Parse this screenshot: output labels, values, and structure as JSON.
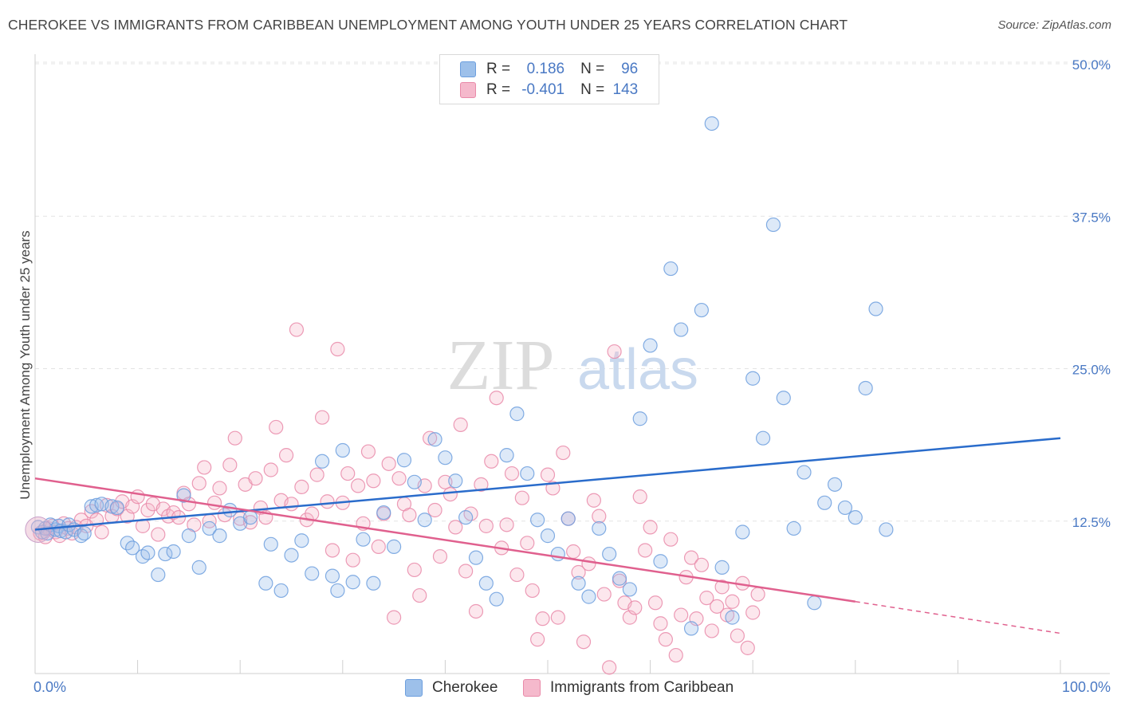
{
  "header": {
    "title": "CHEROKEE VS IMMIGRANTS FROM CARIBBEAN UNEMPLOYMENT AMONG YOUTH UNDER 25 YEARS CORRELATION CHART",
    "source": "Source: ZipAtlas.com"
  },
  "watermark": {
    "zip": "ZIP",
    "atlas": "atlas"
  },
  "legend": {
    "rows": [
      {
        "r_label": "R =",
        "r_value": "0.186",
        "n_label": "N =",
        "n_value": "96",
        "color": "#9dc0ea",
        "border": "#6d9fde"
      },
      {
        "r_label": "R =",
        "r_value": "-0.401",
        "n_label": "N =",
        "n_value": "143",
        "color": "#f5b9cc",
        "border": "#e98aa9"
      }
    ]
  },
  "bottom_legend": {
    "series1": "Cherokee",
    "series2": "Immigrants from Caribbean"
  },
  "x_axis": {
    "min_label": "0.0%",
    "max_label": "100.0%"
  },
  "colors": {
    "cherokee": "#6d9fde",
    "caribbean": "#e98aa9",
    "cherokee_line": "#2a6ccb",
    "caribbean_line": "#e0608e",
    "tick_label": "#4a79c4"
  },
  "chart_data": {
    "type": "scatter",
    "title": "CHEROKEE VS IMMIGRANTS FROM CARIBBEAN UNEMPLOYMENT AMONG YOUTH UNDER 25 YEARS CORRELATION CHART",
    "xlabel": "",
    "ylabel": "Unemployment Among Youth under 25 years",
    "xlim": [
      0,
      100
    ],
    "ylim": [
      0,
      50
    ],
    "y_ticks": [
      {
        "value": 12.5,
        "label": "12.5%"
      },
      {
        "value": 25.0,
        "label": "25.0%"
      },
      {
        "value": 37.5,
        "label": "37.5%"
      },
      {
        "value": 50.0,
        "label": "50.0%"
      }
    ],
    "grid": true,
    "legend_position": "top-center",
    "series": [
      {
        "name": "Cherokee",
        "R": 0.186,
        "N": 96,
        "trend": {
          "x": [
            0,
            100
          ],
          "y": [
            11.8,
            19.3
          ]
        },
        "points": [
          [
            0.3,
            12.0
          ],
          [
            0.7,
            11.6
          ],
          [
            1.0,
            11.9
          ],
          [
            1.2,
            11.5
          ],
          [
            1.5,
            12.2
          ],
          [
            2.0,
            11.8
          ],
          [
            2.3,
            12.1
          ],
          [
            2.5,
            11.7
          ],
          [
            3.0,
            11.6
          ],
          [
            3.3,
            12.2
          ],
          [
            3.8,
            11.8
          ],
          [
            4.5,
            11.3
          ],
          [
            4.8,
            11.5
          ],
          [
            5.5,
            13.7
          ],
          [
            6.0,
            13.8
          ],
          [
            6.5,
            13.9
          ],
          [
            7.5,
            13.7
          ],
          [
            8.0,
            13.6
          ],
          [
            9.0,
            10.7
          ],
          [
            9.5,
            10.3
          ],
          [
            10.5,
            9.6
          ],
          [
            11.0,
            9.9
          ],
          [
            12.0,
            8.1
          ],
          [
            12.7,
            9.8
          ],
          [
            13.5,
            10.0
          ],
          [
            14.5,
            14.6
          ],
          [
            15.0,
            11.3
          ],
          [
            16.0,
            8.7
          ],
          [
            17.0,
            11.9
          ],
          [
            18.0,
            11.3
          ],
          [
            19.0,
            13.4
          ],
          [
            20.0,
            12.3
          ],
          [
            21.0,
            12.8
          ],
          [
            22.5,
            7.4
          ],
          [
            23.0,
            10.6
          ],
          [
            24.0,
            6.8
          ],
          [
            25.0,
            9.7
          ],
          [
            26.0,
            10.9
          ],
          [
            27.0,
            8.2
          ],
          [
            28.0,
            17.4
          ],
          [
            29.0,
            8.0
          ],
          [
            29.5,
            6.8
          ],
          [
            30.0,
            18.3
          ],
          [
            31.0,
            7.5
          ],
          [
            32.0,
            11.0
          ],
          [
            33.0,
            7.4
          ],
          [
            34.0,
            13.2
          ],
          [
            35.0,
            10.4
          ],
          [
            36.0,
            17.5
          ],
          [
            37.0,
            15.7
          ],
          [
            38.0,
            12.6
          ],
          [
            39.0,
            19.2
          ],
          [
            40.0,
            17.7
          ],
          [
            41.0,
            15.8
          ],
          [
            42.0,
            12.8
          ],
          [
            43.0,
            9.5
          ],
          [
            44.0,
            7.4
          ],
          [
            45.0,
            6.1
          ],
          [
            46.0,
            17.9
          ],
          [
            47.0,
            21.3
          ],
          [
            48.0,
            16.4
          ],
          [
            49.0,
            12.6
          ],
          [
            50.0,
            11.3
          ],
          [
            51.0,
            9.8
          ],
          [
            52.0,
            12.7
          ],
          [
            53.0,
            7.4
          ],
          [
            54.0,
            6.3
          ],
          [
            55.0,
            11.9
          ],
          [
            56.0,
            9.8
          ],
          [
            57.0,
            7.8
          ],
          [
            58.0,
            6.9
          ],
          [
            59.0,
            20.9
          ],
          [
            60.0,
            26.9
          ],
          [
            61.0,
            9.2
          ],
          [
            62.0,
            33.2
          ],
          [
            63.0,
            28.2
          ],
          [
            64.0,
            3.7
          ],
          [
            65.0,
            29.8
          ],
          [
            66.0,
            45.1
          ],
          [
            67.0,
            8.7
          ],
          [
            68.0,
            4.6
          ],
          [
            69.0,
            11.6
          ],
          [
            70.0,
            24.2
          ],
          [
            71.0,
            19.3
          ],
          [
            72.0,
            36.8
          ],
          [
            73.0,
            22.6
          ],
          [
            74.0,
            11.9
          ],
          [
            75.0,
            16.5
          ],
          [
            76.0,
            5.8
          ],
          [
            77.0,
            14.0
          ],
          [
            78.0,
            15.5
          ],
          [
            79.0,
            13.6
          ],
          [
            80.0,
            12.8
          ],
          [
            81.0,
            23.4
          ],
          [
            82.0,
            29.9
          ],
          [
            83.0,
            11.8
          ]
        ]
      },
      {
        "name": "Immigrants from Caribbean",
        "R": -0.401,
        "N": 143,
        "trend": {
          "x": [
            0,
            80
          ],
          "y": [
            16.0,
            5.9
          ]
        },
        "trend_dashed": {
          "x": [
            80,
            100
          ],
          "y": [
            5.9,
            3.3
          ]
        },
        "points": [
          [
            0.5,
            11.5
          ],
          [
            1.0,
            11.2
          ],
          [
            1.3,
            11.9
          ],
          [
            1.7,
            12.1
          ],
          [
            2.0,
            11.6
          ],
          [
            2.4,
            11.3
          ],
          [
            2.8,
            12.3
          ],
          [
            3.2,
            11.9
          ],
          [
            3.6,
            11.5
          ],
          [
            4.0,
            12.0
          ],
          [
            4.5,
            12.6
          ],
          [
            5.0,
            12.1
          ],
          [
            5.5,
            13.3
          ],
          [
            6.0,
            12.6
          ],
          [
            6.5,
            11.6
          ],
          [
            7.0,
            13.8
          ],
          [
            7.5,
            12.9
          ],
          [
            8.0,
            13.5
          ],
          [
            8.5,
            14.1
          ],
          [
            9.0,
            12.9
          ],
          [
            9.5,
            13.7
          ],
          [
            10.0,
            14.5
          ],
          [
            10.5,
            12.1
          ],
          [
            11.0,
            13.4
          ],
          [
            11.5,
            13.9
          ],
          [
            12.0,
            11.4
          ],
          [
            12.5,
            13.5
          ],
          [
            13.0,
            12.9
          ],
          [
            13.5,
            13.2
          ],
          [
            14.0,
            12.8
          ],
          [
            14.5,
            14.8
          ],
          [
            15.0,
            13.9
          ],
          [
            15.5,
            12.2
          ],
          [
            16.0,
            15.6
          ],
          [
            16.5,
            16.9
          ],
          [
            17.0,
            12.5
          ],
          [
            17.5,
            14.0
          ],
          [
            18.0,
            15.2
          ],
          [
            18.5,
            13.0
          ],
          [
            19.0,
            17.1
          ],
          [
            19.5,
            19.3
          ],
          [
            20.0,
            12.7
          ],
          [
            20.5,
            15.5
          ],
          [
            21.0,
            12.4
          ],
          [
            21.5,
            16.0
          ],
          [
            22.0,
            13.6
          ],
          [
            22.5,
            12.8
          ],
          [
            23.0,
            16.7
          ],
          [
            23.5,
            20.2
          ],
          [
            24.0,
            14.2
          ],
          [
            24.5,
            17.9
          ],
          [
            25.0,
            13.9
          ],
          [
            25.5,
            28.2
          ],
          [
            26.0,
            15.3
          ],
          [
            26.5,
            12.6
          ],
          [
            27.0,
            13.1
          ],
          [
            27.5,
            16.3
          ],
          [
            28.0,
            21.0
          ],
          [
            28.5,
            14.1
          ],
          [
            29.0,
            10.1
          ],
          [
            29.5,
            26.6
          ],
          [
            30.0,
            14.0
          ],
          [
            30.5,
            16.4
          ],
          [
            31.0,
            9.3
          ],
          [
            31.5,
            15.4
          ],
          [
            32.0,
            12.3
          ],
          [
            32.5,
            18.2
          ],
          [
            33.0,
            15.8
          ],
          [
            33.5,
            10.4
          ],
          [
            34.0,
            13.1
          ],
          [
            34.5,
            17.2
          ],
          [
            35.0,
            4.6
          ],
          [
            35.5,
            16.0
          ],
          [
            36.0,
            13.9
          ],
          [
            36.5,
            13.0
          ],
          [
            37.0,
            8.5
          ],
          [
            37.5,
            6.4
          ],
          [
            38.0,
            15.4
          ],
          [
            38.5,
            19.3
          ],
          [
            39.0,
            13.4
          ],
          [
            39.5,
            9.6
          ],
          [
            40.0,
            15.7
          ],
          [
            40.5,
            14.7
          ],
          [
            41.0,
            12.0
          ],
          [
            41.5,
            20.4
          ],
          [
            42.0,
            8.4
          ],
          [
            42.5,
            13.1
          ],
          [
            43.0,
            5.1
          ],
          [
            43.5,
            15.5
          ],
          [
            44.0,
            12.1
          ],
          [
            44.5,
            17.4
          ],
          [
            45.0,
            22.6
          ],
          [
            45.5,
            10.3
          ],
          [
            46.0,
            12.2
          ],
          [
            46.5,
            16.4
          ],
          [
            47.0,
            8.1
          ],
          [
            47.5,
            14.4
          ],
          [
            48.0,
            10.7
          ],
          [
            48.5,
            6.8
          ],
          [
            49.0,
            2.8
          ],
          [
            49.5,
            4.5
          ],
          [
            50.0,
            16.3
          ],
          [
            50.5,
            15.2
          ],
          [
            51.0,
            4.6
          ],
          [
            51.5,
            18.1
          ],
          [
            52.0,
            12.7
          ],
          [
            52.5,
            10.0
          ],
          [
            53.0,
            8.3
          ],
          [
            53.5,
            2.6
          ],
          [
            54.0,
            9.0
          ],
          [
            54.5,
            14.2
          ],
          [
            55.0,
            12.9
          ],
          [
            55.5,
            6.5
          ],
          [
            56.0,
            0.5
          ],
          [
            56.5,
            26.4
          ],
          [
            57.0,
            7.6
          ],
          [
            57.5,
            5.8
          ],
          [
            58.0,
            4.6
          ],
          [
            58.5,
            5.4
          ],
          [
            59.0,
            14.5
          ],
          [
            59.5,
            10.1
          ],
          [
            60.0,
            12.0
          ],
          [
            60.5,
            5.8
          ],
          [
            61.0,
            4.1
          ],
          [
            61.5,
            2.8
          ],
          [
            62.0,
            11.0
          ],
          [
            62.5,
            1.5
          ],
          [
            63.0,
            4.8
          ],
          [
            63.5,
            7.9
          ],
          [
            64.0,
            9.5
          ],
          [
            64.5,
            4.5
          ],
          [
            65.0,
            8.9
          ],
          [
            65.5,
            6.2
          ],
          [
            66.0,
            3.5
          ],
          [
            66.5,
            5.5
          ],
          [
            67.0,
            7.1
          ],
          [
            67.5,
            4.8
          ],
          [
            68.0,
            5.9
          ],
          [
            68.5,
            3.1
          ],
          [
            69.0,
            7.4
          ],
          [
            69.5,
            2.1
          ],
          [
            70.0,
            5.0
          ],
          [
            70.5,
            6.5
          ]
        ]
      }
    ]
  }
}
